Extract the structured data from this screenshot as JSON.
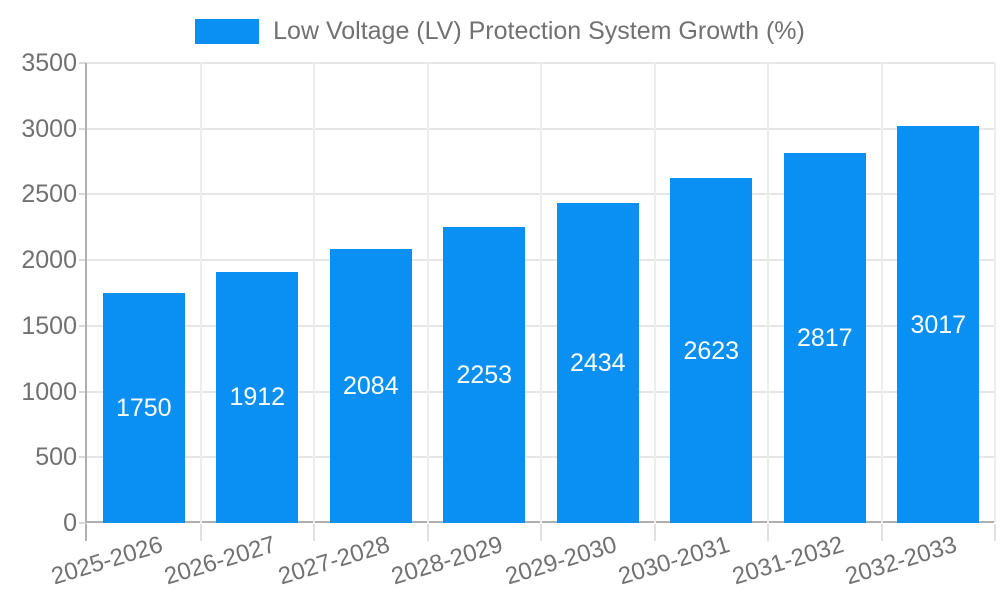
{
  "legend": {
    "label": "Low Voltage (LV) Protection System Growth (%)"
  },
  "colors": {
    "bar": "#0990f2",
    "axis_line": "#b0b0b0",
    "gridline": "#e6e6e6",
    "axis_text": "#717171",
    "value_text": "#ffffff",
    "background": "#ffffff"
  },
  "chart_data": {
    "type": "bar",
    "title": "",
    "legend_entries": [
      "Low Voltage (LV) Protection System Growth (%)"
    ],
    "legend_position": "top",
    "categories": [
      "2025-2026",
      "2026-2027",
      "2027-2028",
      "2028-2029",
      "2029-2030",
      "2030-2031",
      "2031-2032",
      "2032-2033"
    ],
    "values": [
      1750,
      1912,
      2084,
      2253,
      2434,
      2623,
      2817,
      3017
    ],
    "value_labels": [
      "1750",
      "1912",
      "2084",
      "2253",
      "2434",
      "2623",
      "2817",
      "3017"
    ],
    "xlabel": "",
    "ylabel": "",
    "ylim": [
      0,
      3500
    ],
    "ytick_interval": 500,
    "ytick_labels": [
      "0",
      "500",
      "1000",
      "1500",
      "2000",
      "2500",
      "3000",
      "3500"
    ],
    "grid": true
  }
}
